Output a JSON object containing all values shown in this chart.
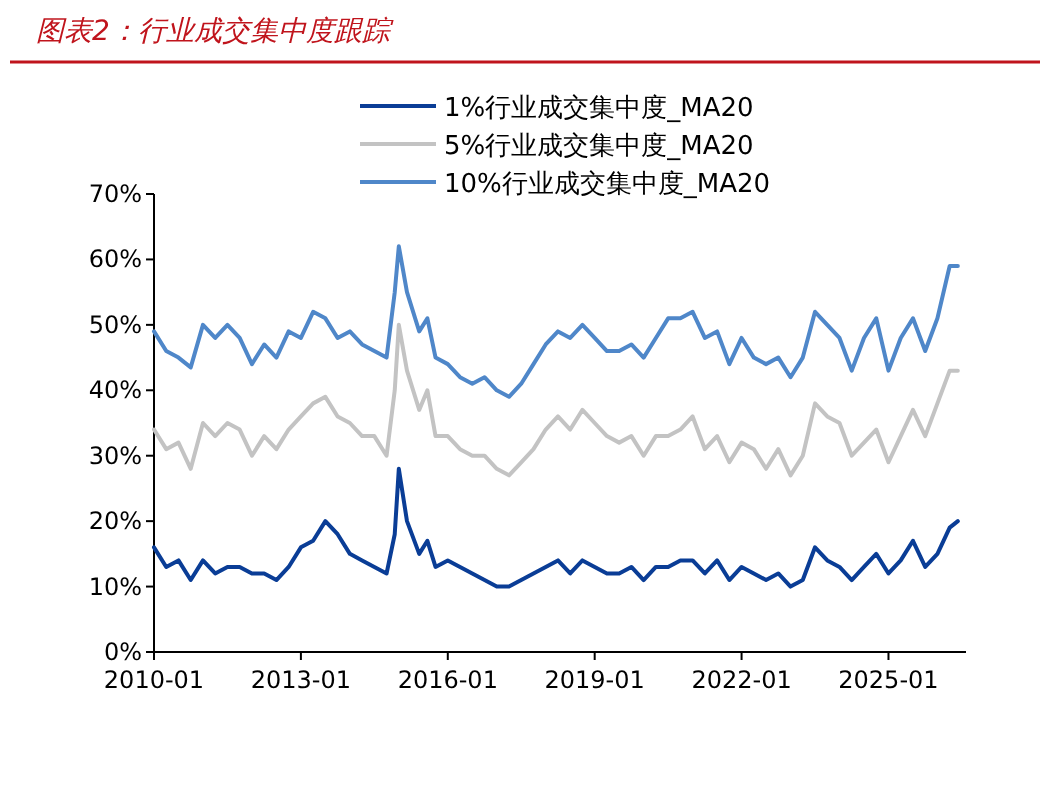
{
  "chart_data": {
    "type": "line",
    "title": "图表2：行业成交集中度跟踪",
    "x": [
      "2010-01",
      "2010-04",
      "2010-07",
      "2010-10",
      "2011-01",
      "2011-04",
      "2011-07",
      "2011-10",
      "2012-01",
      "2012-04",
      "2012-07",
      "2012-10",
      "2013-01",
      "2013-04",
      "2013-07",
      "2013-10",
      "2014-01",
      "2014-04",
      "2014-07",
      "2014-10",
      "2014-12",
      "2015-01",
      "2015-03",
      "2015-06",
      "2015-08",
      "2015-10",
      "2016-01",
      "2016-04",
      "2016-07",
      "2016-10",
      "2017-01",
      "2017-04",
      "2017-07",
      "2017-10",
      "2018-01",
      "2018-04",
      "2018-07",
      "2018-10",
      "2019-01",
      "2019-04",
      "2019-07",
      "2019-10",
      "2020-01",
      "2020-04",
      "2020-07",
      "2020-10",
      "2021-01",
      "2021-04",
      "2021-07",
      "2021-10",
      "2022-01",
      "2022-04",
      "2022-07",
      "2022-10",
      "2023-01",
      "2023-04",
      "2023-07",
      "2023-10",
      "2024-01",
      "2024-04",
      "2024-07",
      "2024-10",
      "2025-01",
      "2025-04",
      "2025-07",
      "2025-10",
      "2026-01",
      "2026-04",
      "2026-06"
    ],
    "series": [
      {
        "name": "1%行业成交集中度_MA20",
        "color": "#0a3d96",
        "values": [
          16,
          13,
          14,
          11,
          14,
          12,
          13,
          13,
          12,
          12,
          11,
          13,
          16,
          17,
          20,
          18,
          15,
          14,
          13,
          12,
          18,
          28,
          20,
          15,
          17,
          13,
          14,
          13,
          12,
          11,
          10,
          10,
          11,
          12,
          13,
          14,
          12,
          14,
          13,
          12,
          12,
          13,
          11,
          13,
          13,
          14,
          14,
          12,
          14,
          11,
          13,
          12,
          11,
          12,
          10,
          11,
          16,
          14,
          13,
          11,
          13,
          15,
          12,
          14,
          17,
          13,
          15,
          19,
          20
        ]
      },
      {
        "name": "5%行业成交集中度_MA20",
        "color": "#c3c3c3",
        "values": [
          34,
          31,
          32,
          28,
          35,
          33,
          35,
          34,
          30,
          33,
          31,
          34,
          36,
          38,
          39,
          36,
          35,
          33,
          33,
          30,
          40,
          50,
          43,
          37,
          40,
          33,
          33,
          31,
          30,
          30,
          28,
          27,
          29,
          31,
          34,
          36,
          34,
          37,
          35,
          33,
          32,
          33,
          30,
          33,
          33,
          34,
          36,
          31,
          33,
          29,
          32,
          31,
          28,
          31,
          27,
          30,
          38,
          36,
          35,
          30,
          32,
          34,
          29,
          33,
          37,
          33,
          38,
          43,
          43
        ]
      },
      {
        "name": "10%行业成交集中度_MA20",
        "color": "#4f87c9",
        "values": [
          49,
          46,
          45,
          43.5,
          50,
          48,
          50,
          48,
          44,
          47,
          45,
          49,
          48,
          52,
          51,
          48,
          49,
          47,
          46,
          45,
          55,
          62,
          55,
          49,
          51,
          45,
          44,
          42,
          41,
          42,
          40,
          39,
          41,
          44,
          47,
          49,
          48,
          50,
          48,
          46,
          46,
          47,
          45,
          48,
          51,
          51,
          52,
          48,
          49,
          44,
          48,
          45,
          44,
          45,
          42,
          45,
          52,
          50,
          48,
          43,
          48,
          51,
          43,
          48,
          51,
          46,
          51,
          59,
          59
        ]
      }
    ],
    "xlim": [
      "2010-01",
      "2026-08"
    ],
    "xticks": [
      {
        "value": "2010-01",
        "label": "2010-01"
      },
      {
        "value": "2013-01",
        "label": "2013-01"
      },
      {
        "value": "2016-01",
        "label": "2016-01"
      },
      {
        "value": "2019-01",
        "label": "2019-01"
      },
      {
        "value": "2022-01",
        "label": "2022-01"
      },
      {
        "value": "2025-01",
        "label": "2025-01"
      }
    ],
    "ylim": [
      0,
      70
    ],
    "yticks": [
      {
        "value": 0,
        "label": "0%"
      },
      {
        "value": 10,
        "label": "10%"
      },
      {
        "value": 20,
        "label": "20%"
      },
      {
        "value": 30,
        "label": "30%"
      },
      {
        "value": 40,
        "label": "40%"
      },
      {
        "value": 50,
        "label": "50%"
      },
      {
        "value": 60,
        "label": "60%"
      },
      {
        "value": 70,
        "label": "70%"
      }
    ],
    "legend": "top",
    "grid": false,
    "marker": "none",
    "line_style": "solid"
  }
}
